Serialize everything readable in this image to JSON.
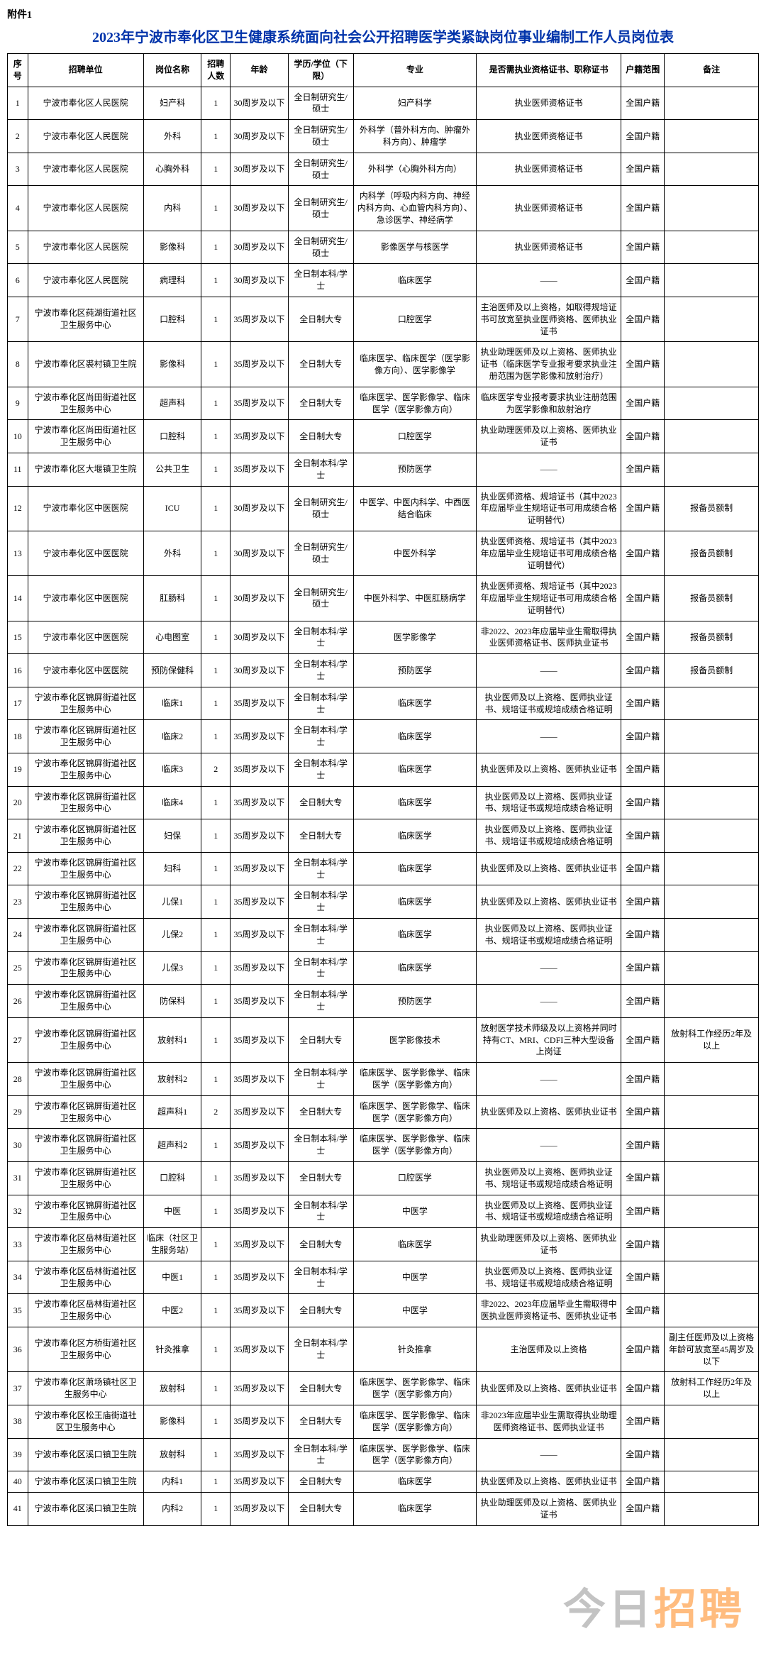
{
  "attachment_label": "附件1",
  "title": "2023年宁波市奉化区卫生健康系统面向社会公开招聘医学类紧缺岗位事业编制工作人员岗位表",
  "watermark": {
    "part1": "今日",
    "part2": "招聘"
  },
  "columns": [
    "序号",
    "招聘单位",
    "岗位名称",
    "招聘人数",
    "年龄",
    "学历/学位（下限）",
    "专业",
    "是否需执业资格证书、职称证书",
    "户籍范围",
    "备注"
  ],
  "rows": [
    {
      "idx": "1",
      "unit": "宁波市奉化区人民医院",
      "post": "妇产科",
      "num": "1",
      "age": "30周岁及以下",
      "edu": "全日制研究生/硕士",
      "major": "妇产科学",
      "cert": "执业医师资格证书",
      "reg": "全国户籍",
      "note": ""
    },
    {
      "idx": "2",
      "unit": "宁波市奉化区人民医院",
      "post": "外科",
      "num": "1",
      "age": "30周岁及以下",
      "edu": "全日制研究生/硕士",
      "major": "外科学（普外科方向、肿瘤外科方向）、肿瘤学",
      "cert": "执业医师资格证书",
      "reg": "全国户籍",
      "note": ""
    },
    {
      "idx": "3",
      "unit": "宁波市奉化区人民医院",
      "post": "心胸外科",
      "num": "1",
      "age": "30周岁及以下",
      "edu": "全日制研究生/硕士",
      "major": "外科学（心胸外科方向）",
      "cert": "执业医师资格证书",
      "reg": "全国户籍",
      "note": ""
    },
    {
      "idx": "4",
      "unit": "宁波市奉化区人民医院",
      "post": "内科",
      "num": "1",
      "age": "30周岁及以下",
      "edu": "全日制研究生/硕士",
      "major": "内科学（呼吸内科方向、神经内科方向、心血管内科方向）、急诊医学、神经病学",
      "cert": "执业医师资格证书",
      "reg": "全国户籍",
      "note": ""
    },
    {
      "idx": "5",
      "unit": "宁波市奉化区人民医院",
      "post": "影像科",
      "num": "1",
      "age": "30周岁及以下",
      "edu": "全日制研究生/硕士",
      "major": "影像医学与核医学",
      "cert": "执业医师资格证书",
      "reg": "全国户籍",
      "note": ""
    },
    {
      "idx": "6",
      "unit": "宁波市奉化区人民医院",
      "post": "病理科",
      "num": "1",
      "age": "30周岁及以下",
      "edu": "全日制本科/学士",
      "major": "临床医学",
      "cert": "——",
      "reg": "全国户籍",
      "note": ""
    },
    {
      "idx": "7",
      "unit": "宁波市奉化区莼湖街道社区卫生服务中心",
      "post": "口腔科",
      "num": "1",
      "age": "35周岁及以下",
      "edu": "全日制大专",
      "major": "口腔医学",
      "cert": "主治医师及以上资格，如取得规培证书可放宽至执业医师资格、医师执业证书",
      "reg": "全国户籍",
      "note": ""
    },
    {
      "idx": "8",
      "unit": "宁波市奉化区裘村镇卫生院",
      "post": "影像科",
      "num": "1",
      "age": "35周岁及以下",
      "edu": "全日制大专",
      "major": "临床医学、临床医学（医学影像方向）、医学影像学",
      "cert": "执业助理医师及以上资格、医师执业证书（临床医学专业报考要求执业注册范围为医学影像和放射治疗）",
      "reg": "全国户籍",
      "note": ""
    },
    {
      "idx": "9",
      "unit": "宁波市奉化区尚田街道社区卫生服务中心",
      "post": "超声科",
      "num": "1",
      "age": "35周岁及以下",
      "edu": "全日制大专",
      "major": "临床医学、医学影像学、临床医学（医学影像方向）",
      "cert": "临床医学专业报考要求执业注册范围为医学影像和放射治疗",
      "reg": "全国户籍",
      "note": ""
    },
    {
      "idx": "10",
      "unit": "宁波市奉化区尚田街道社区卫生服务中心",
      "post": "口腔科",
      "num": "1",
      "age": "35周岁及以下",
      "edu": "全日制大专",
      "major": "口腔医学",
      "cert": "执业助理医师及以上资格、医师执业证书",
      "reg": "全国户籍",
      "note": ""
    },
    {
      "idx": "11",
      "unit": "宁波市奉化区大堰镇卫生院",
      "post": "公共卫生",
      "num": "1",
      "age": "35周岁及以下",
      "edu": "全日制本科/学士",
      "major": "预防医学",
      "cert": "——",
      "reg": "全国户籍",
      "note": ""
    },
    {
      "idx": "12",
      "unit": "宁波市奉化区中医医院",
      "post": "ICU",
      "num": "1",
      "age": "30周岁及以下",
      "edu": "全日制研究生/硕士",
      "major": "中医学、中医内科学、中西医结合临床",
      "cert": "执业医师资格、规培证书（其中2023年应届毕业生规培证书可用成绩合格证明替代）",
      "reg": "全国户籍",
      "note": "报备员额制"
    },
    {
      "idx": "13",
      "unit": "宁波市奉化区中医医院",
      "post": "外科",
      "num": "1",
      "age": "30周岁及以下",
      "edu": "全日制研究生/硕士",
      "major": "中医外科学",
      "cert": "执业医师资格、规培证书（其中2023年应届毕业生规培证书可用成绩合格证明替代）",
      "reg": "全国户籍",
      "note": "报备员额制"
    },
    {
      "idx": "14",
      "unit": "宁波市奉化区中医医院",
      "post": "肛肠科",
      "num": "1",
      "age": "30周岁及以下",
      "edu": "全日制研究生/硕士",
      "major": "中医外科学、中医肛肠病学",
      "cert": "执业医师资格、规培证书（其中2023年应届毕业生规培证书可用成绩合格证明替代）",
      "reg": "全国户籍",
      "note": "报备员额制"
    },
    {
      "idx": "15",
      "unit": "宁波市奉化区中医医院",
      "post": "心电图室",
      "num": "1",
      "age": "30周岁及以下",
      "edu": "全日制本科/学士",
      "major": "医学影像学",
      "cert": "非2022、2023年应届毕业生需取得执业医师资格证书、医师执业证书",
      "reg": "全国户籍",
      "note": "报备员额制"
    },
    {
      "idx": "16",
      "unit": "宁波市奉化区中医医院",
      "post": "预防保健科",
      "num": "1",
      "age": "30周岁及以下",
      "edu": "全日制本科/学士",
      "major": "预防医学",
      "cert": "——",
      "reg": "全国户籍",
      "note": "报备员额制"
    },
    {
      "idx": "17",
      "unit": "宁波市奉化区锦屏街道社区卫生服务中心",
      "post": "临床1",
      "num": "1",
      "age": "35周岁及以下",
      "edu": "全日制本科/学士",
      "major": "临床医学",
      "cert": "执业医师及以上资格、医师执业证书、规培证书或规培成绩合格证明",
      "reg": "全国户籍",
      "note": ""
    },
    {
      "idx": "18",
      "unit": "宁波市奉化区锦屏街道社区卫生服务中心",
      "post": "临床2",
      "num": "1",
      "age": "35周岁及以下",
      "edu": "全日制本科/学士",
      "major": "临床医学",
      "cert": "——",
      "reg": "全国户籍",
      "note": ""
    },
    {
      "idx": "19",
      "unit": "宁波市奉化区锦屏街道社区卫生服务中心",
      "post": "临床3",
      "num": "2",
      "age": "35周岁及以下",
      "edu": "全日制本科/学士",
      "major": "临床医学",
      "cert": "执业医师及以上资格、医师执业证书",
      "reg": "全国户籍",
      "note": ""
    },
    {
      "idx": "20",
      "unit": "宁波市奉化区锦屏街道社区卫生服务中心",
      "post": "临床4",
      "num": "1",
      "age": "35周岁及以下",
      "edu": "全日制大专",
      "major": "临床医学",
      "cert": "执业医师及以上资格、医师执业证书、规培证书或规培成绩合格证明",
      "reg": "全国户籍",
      "note": ""
    },
    {
      "idx": "21",
      "unit": "宁波市奉化区锦屏街道社区卫生服务中心",
      "post": "妇保",
      "num": "1",
      "age": "35周岁及以下",
      "edu": "全日制大专",
      "major": "临床医学",
      "cert": "执业医师及以上资格、医师执业证书、规培证书或规培成绩合格证明",
      "reg": "全国户籍",
      "note": ""
    },
    {
      "idx": "22",
      "unit": "宁波市奉化区锦屏街道社区卫生服务中心",
      "post": "妇科",
      "num": "1",
      "age": "35周岁及以下",
      "edu": "全日制本科/学士",
      "major": "临床医学",
      "cert": "执业医师及以上资格、医师执业证书",
      "reg": "全国户籍",
      "note": ""
    },
    {
      "idx": "23",
      "unit": "宁波市奉化区锦屏街道社区卫生服务中心",
      "post": "儿保1",
      "num": "1",
      "age": "35周岁及以下",
      "edu": "全日制本科/学士",
      "major": "临床医学",
      "cert": "执业医师及以上资格、医师执业证书",
      "reg": "全国户籍",
      "note": ""
    },
    {
      "idx": "24",
      "unit": "宁波市奉化区锦屏街道社区卫生服务中心",
      "post": "儿保2",
      "num": "1",
      "age": "35周岁及以下",
      "edu": "全日制本科/学士",
      "major": "临床医学",
      "cert": "执业医师及以上资格、医师执业证书、规培证书或规培成绩合格证明",
      "reg": "全国户籍",
      "note": ""
    },
    {
      "idx": "25",
      "unit": "宁波市奉化区锦屏街道社区卫生服务中心",
      "post": "儿保3",
      "num": "1",
      "age": "35周岁及以下",
      "edu": "全日制本科/学士",
      "major": "临床医学",
      "cert": "——",
      "reg": "全国户籍",
      "note": ""
    },
    {
      "idx": "26",
      "unit": "宁波市奉化区锦屏街道社区卫生服务中心",
      "post": "防保科",
      "num": "1",
      "age": "35周岁及以下",
      "edu": "全日制本科/学士",
      "major": "预防医学",
      "cert": "——",
      "reg": "全国户籍",
      "note": ""
    },
    {
      "idx": "27",
      "unit": "宁波市奉化区锦屏街道社区卫生服务中心",
      "post": "放射科1",
      "num": "1",
      "age": "35周岁及以下",
      "edu": "全日制大专",
      "major": "医学影像技术",
      "cert": "放射医学技术师级及以上资格并同时持有CT、MRI、CDFI三种大型设备上岗证",
      "reg": "全国户籍",
      "note": "放射科工作经历2年及以上"
    },
    {
      "idx": "28",
      "unit": "宁波市奉化区锦屏街道社区卫生服务中心",
      "post": "放射科2",
      "num": "1",
      "age": "35周岁及以下",
      "edu": "全日制本科/学士",
      "major": "临床医学、医学影像学、临床医学（医学影像方向）",
      "cert": "——",
      "reg": "全国户籍",
      "note": ""
    },
    {
      "idx": "29",
      "unit": "宁波市奉化区锦屏街道社区卫生服务中心",
      "post": "超声科1",
      "num": "2",
      "age": "35周岁及以下",
      "edu": "全日制大专",
      "major": "临床医学、医学影像学、临床医学（医学影像方向）",
      "cert": "执业医师及以上资格、医师执业证书",
      "reg": "全国户籍",
      "note": ""
    },
    {
      "idx": "30",
      "unit": "宁波市奉化区锦屏街道社区卫生服务中心",
      "post": "超声科2",
      "num": "1",
      "age": "35周岁及以下",
      "edu": "全日制本科/学士",
      "major": "临床医学、医学影像学、临床医学（医学影像方向）",
      "cert": "——",
      "reg": "全国户籍",
      "note": ""
    },
    {
      "idx": "31",
      "unit": "宁波市奉化区锦屏街道社区卫生服务中心",
      "post": "口腔科",
      "num": "1",
      "age": "35周岁及以下",
      "edu": "全日制大专",
      "major": "口腔医学",
      "cert": "执业医师及以上资格、医师执业证书、规培证书或规培成绩合格证明",
      "reg": "全国户籍",
      "note": ""
    },
    {
      "idx": "32",
      "unit": "宁波市奉化区锦屏街道社区卫生服务中心",
      "post": "中医",
      "num": "1",
      "age": "35周岁及以下",
      "edu": "全日制本科/学士",
      "major": "中医学",
      "cert": "执业医师及以上资格、医师执业证书、规培证书或规培成绩合格证明",
      "reg": "全国户籍",
      "note": ""
    },
    {
      "idx": "33",
      "unit": "宁波市奉化区岳林街道社区卫生服务中心",
      "post": "临床（社区卫生服务站）",
      "num": "1",
      "age": "35周岁及以下",
      "edu": "全日制大专",
      "major": "临床医学",
      "cert": "执业助理医师及以上资格、医师执业证书",
      "reg": "全国户籍",
      "note": ""
    },
    {
      "idx": "34",
      "unit": "宁波市奉化区岳林街道社区卫生服务中心",
      "post": "中医1",
      "num": "1",
      "age": "35周岁及以下",
      "edu": "全日制本科/学士",
      "major": "中医学",
      "cert": "执业医师及以上资格、医师执业证书、规培证书或规培成绩合格证明",
      "reg": "全国户籍",
      "note": ""
    },
    {
      "idx": "35",
      "unit": "宁波市奉化区岳林街道社区卫生服务中心",
      "post": "中医2",
      "num": "1",
      "age": "35周岁及以下",
      "edu": "全日制大专",
      "major": "中医学",
      "cert": "非2022、2023年应届毕业生需取得中医执业医师资格证书、医师执业证书",
      "reg": "全国户籍",
      "note": ""
    },
    {
      "idx": "36",
      "unit": "宁波市奉化区方桥街道社区卫生服务中心",
      "post": "针灸推拿",
      "num": "1",
      "age": "35周岁及以下",
      "edu": "全日制本科/学士",
      "major": "针灸推拿",
      "cert": "主治医师及以上资格",
      "reg": "全国户籍",
      "note": "副主任医师及以上资格年龄可放宽至45周岁及以下"
    },
    {
      "idx": "37",
      "unit": "宁波市奉化区萧场镇社区卫生服务中心",
      "post": "放射科",
      "num": "1",
      "age": "35周岁及以下",
      "edu": "全日制大专",
      "major": "临床医学、医学影像学、临床医学（医学影像方向）",
      "cert": "执业医师及以上资格、医师执业证书",
      "reg": "全国户籍",
      "note": "放射科工作经历2年及以上"
    },
    {
      "idx": "38",
      "unit": "宁波市奉化区松王庙街道社区卫生服务中心",
      "post": "影像科",
      "num": "1",
      "age": "35周岁及以下",
      "edu": "全日制大专",
      "major": "临床医学、医学影像学、临床医学（医学影像方向）",
      "cert": "非2023年应届毕业生需取得执业助理医师资格证书、医师执业证书",
      "reg": "全国户籍",
      "note": ""
    },
    {
      "idx": "39",
      "unit": "宁波市奉化区溪口镇卫生院",
      "post": "放射科",
      "num": "1",
      "age": "35周岁及以下",
      "edu": "全日制本科/学士",
      "major": "临床医学、医学影像学、临床医学（医学影像方向）",
      "cert": "——",
      "reg": "全国户籍",
      "note": ""
    },
    {
      "idx": "40",
      "unit": "宁波市奉化区溪口镇卫生院",
      "post": "内科1",
      "num": "1",
      "age": "35周岁及以下",
      "edu": "全日制大专",
      "major": "临床医学",
      "cert": "执业医师及以上资格、医师执业证书",
      "reg": "全国户籍",
      "note": ""
    },
    {
      "idx": "41",
      "unit": "宁波市奉化区溪口镇卫生院",
      "post": "内科2",
      "num": "1",
      "age": "35周岁及以下",
      "edu": "全日制大专",
      "major": "临床医学",
      "cert": "执业助理医师及以上资格、医师执业证书",
      "reg": "全国户籍",
      "note": ""
    }
  ]
}
